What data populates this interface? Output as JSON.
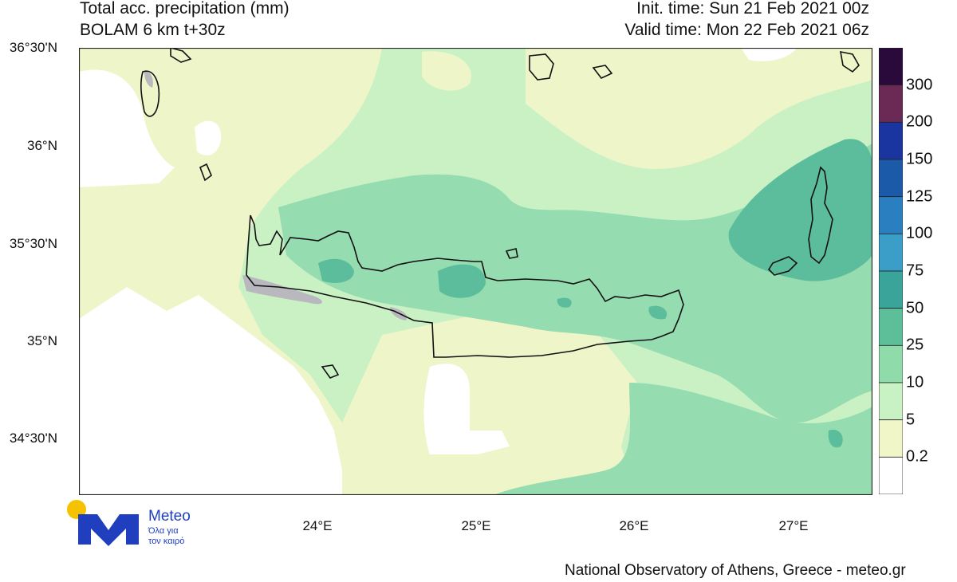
{
  "header": {
    "title_line1": "Total acc. precipitation (mm)",
    "title_line2": "BOLAM 6 km t+30z",
    "init_time": "Init. time: Sun 21 Feb 2021 00z",
    "valid_time": "Valid time: Mon 22 Feb 2021 06z"
  },
  "axes": {
    "lat_labels": [
      "36°30'N",
      "36°N",
      "35°30'N",
      "35°N",
      "34°30'N"
    ],
    "lon_labels": [
      "24°E",
      "25°E",
      "26°E",
      "27°E"
    ]
  },
  "legend": {
    "levels": [
      "300",
      "200",
      "150",
      "125",
      "100",
      "75",
      "50",
      "25",
      "10",
      "5",
      "0.2"
    ],
    "colors": [
      "#2a0a3a",
      "#6b2a55",
      "#1a35a0",
      "#1a5aa8",
      "#2a7fc0",
      "#3a9ec8",
      "#3aa39a",
      "#5cbf99",
      "#8fdcaa",
      "#c8f2c4",
      "#f0f6c8",
      "#ffffff"
    ]
  },
  "map_colors": {
    "white": "#ffffff",
    "yellow": "#eef5c9",
    "lightgreen": "#c9f1c4",
    "green": "#95dcb0",
    "teal": "#5cbd9c",
    "gray": "#b8b8be",
    "coast": "#111111"
  },
  "logo": {
    "word": "Meteo",
    "sub_line1": "Όλα για",
    "sub_line2": "τον καιρό"
  },
  "footer": {
    "credit": "National Observatory of Athens, Greece - meteo.gr"
  }
}
